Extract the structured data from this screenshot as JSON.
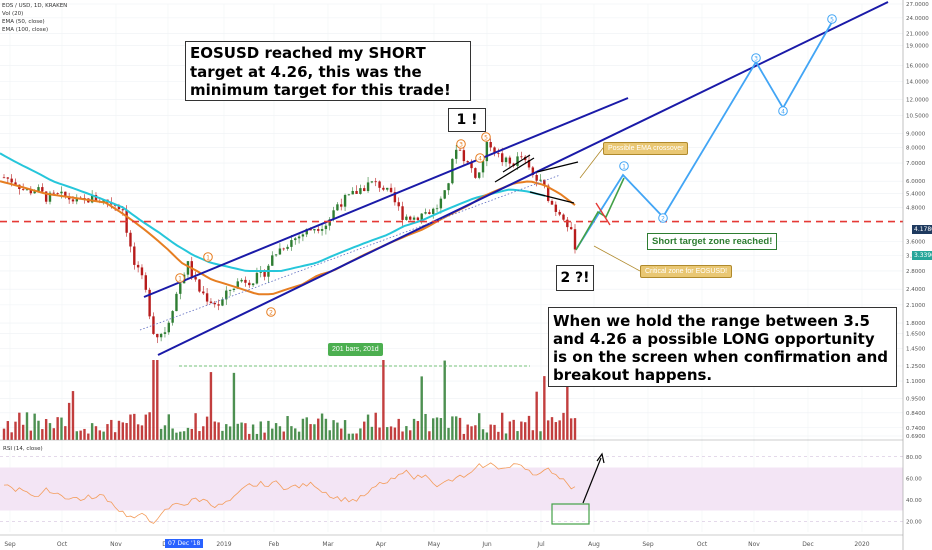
{
  "header": {
    "symbol_line": "EOS / USD, 1D, KRAKEN",
    "indicators": [
      "Vol (20)",
      "EMA (50, close)",
      "EMA (100, close)"
    ]
  },
  "annotations": {
    "note_top": "EOSUSD reached my SHORT target at 4.26, this was the minimum target for this trade!",
    "note_bottom": "When we hold the range between 3.5 and 4.26 a possible LONG opportunity is on the screen when confirmation and breakout happens.",
    "wave1": "1 !",
    "wave2": "2 ?!",
    "ema_callout": "Possible EMA crossover",
    "critical_callout": "Critical zone for EOSUSD!",
    "short_target": "Short target  zone reached!",
    "bars_range": "201 bars, 201d",
    "date_tag": "07 Dec '18",
    "rsi_label": "RSI (14, close)"
  },
  "price_tags": [
    {
      "value": "4.1786",
      "color": "#1e3a5f"
    },
    {
      "value": "3.3396",
      "color": "#26a69a"
    }
  ],
  "colors": {
    "ema50": "#e67e22",
    "ema100": "#26c6da",
    "channel": "#1a1aa8",
    "projection": "#42a5f5",
    "short_line": "#e53935",
    "rsi": "#f39c5a",
    "rsi_band": "#f3e5f5",
    "up": "#2e7d32",
    "down": "#b71c1c"
  },
  "chart_data": {
    "type": "candlestick",
    "title": "EOS / USD, 1D, KRAKEN",
    "y_scale": "log",
    "y_ticks": [
      "27.0000",
      "24.0000",
      "21.0000",
      "19.0000",
      "16.0000",
      "14.0000",
      "12.0000",
      "10.5000",
      "9.0000",
      "8.0000",
      "7.0000",
      "6.0000",
      "5.4000",
      "4.8000",
      "3.6000",
      "3.2000",
      "2.8000",
      "2.4000",
      "2.1000",
      "1.8000",
      "1.6500",
      "1.4500",
      "1.2500",
      "1.1000",
      "0.9500",
      "0.8400",
      "0.7400",
      "0.6900"
    ],
    "x_ticks": [
      "Sep",
      "Oct",
      "Nov",
      "Dec",
      "2019",
      "Feb",
      "Mar",
      "Apr",
      "May",
      "Jun",
      "Jul",
      "Aug",
      "Sep",
      "Oct",
      "Nov",
      "Dec",
      "2020"
    ],
    "rsi_ticks": [
      "80.00",
      "60.00",
      "40.00",
      "20.00"
    ],
    "short_target": 4.26,
    "range_low": 3.5,
    "series": [
      {
        "name": "Price",
        "values": [
          6.2,
          6.0,
          5.5,
          5.6,
          5.2,
          5.3,
          5.2,
          5.0,
          5.2,
          5.1,
          5.0,
          4.8,
          3.0,
          2.5,
          1.6,
          1.7,
          2.3,
          3.0,
          2.4,
          2.2,
          2.1,
          2.4,
          2.6,
          2.6,
          2.7,
          3.2,
          3.5,
          3.7,
          3.9,
          4.1,
          4.2,
          5.0,
          5.2,
          5.6,
          5.9,
          5.8,
          5.2,
          4.5,
          4.4,
          4.6,
          4.7,
          5.4,
          8.2,
          7.0,
          6.2,
          8.5,
          7.3,
          6.9,
          7.4,
          6.3,
          5.8,
          4.8,
          4.5,
          3.5
        ]
      },
      {
        "name": "EMA (50, close)",
        "values": [
          6.0,
          5.8,
          5.6,
          5.4,
          5.3,
          5.2,
          5.1,
          5.0,
          4.6,
          4.2,
          3.8,
          3.4,
          3.0,
          2.8,
          2.6,
          2.5,
          2.4,
          2.3,
          2.3,
          2.4,
          2.5,
          2.7,
          2.8,
          3.0,
          3.2,
          3.4,
          3.6,
          3.8,
          4.0,
          4.3,
          4.6,
          4.9,
          5.3,
          5.6,
          5.9,
          6.0,
          5.8,
          5.4,
          4.9
        ]
      },
      {
        "name": "EMA (100, close)",
        "values": [
          7.6,
          7.0,
          6.5,
          6.0,
          5.7,
          5.4,
          5.1,
          4.8,
          4.3,
          3.9,
          3.5,
          3.2,
          3.0,
          2.9,
          2.8,
          2.8,
          2.8,
          2.9,
          3.0,
          3.2,
          3.4,
          3.6,
          3.8,
          4.1,
          4.3,
          4.6,
          4.9,
          5.2,
          5.4,
          5.6,
          5.5,
          5.3
        ]
      },
      {
        "name": "Projection",
        "values": [
          3.4,
          5.0,
          4.4,
          7.0,
          4.8,
          18.0,
          12.5,
          25.0
        ]
      }
    ],
    "wave_labels": [
      "1",
      "2",
      "3",
      "4",
      "5",
      "2",
      "3",
      "5",
      "1",
      "2",
      "3",
      "4",
      "5"
    ],
    "grid": true,
    "legend": "top-left"
  }
}
